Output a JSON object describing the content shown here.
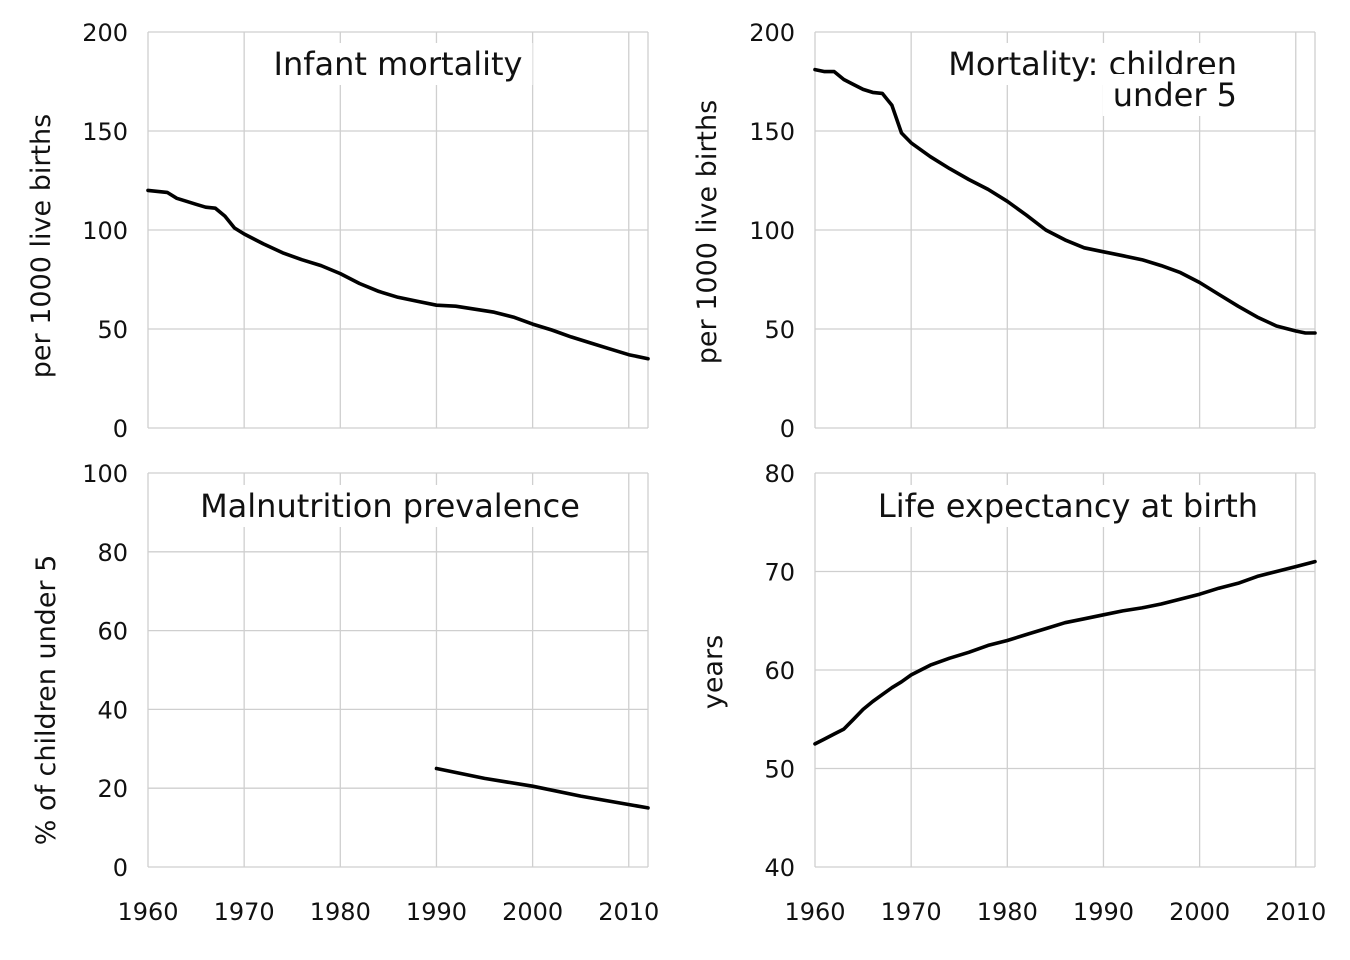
{
  "chart_data": [
    {
      "type": "line",
      "title": [
        "Infant mortality"
      ],
      "title_align": "middle",
      "ylabel": "per 1000 live births",
      "xlim": [
        1960,
        2012
      ],
      "ylim": [
        0,
        200
      ],
      "yticks": [
        0,
        50,
        100,
        150,
        200
      ],
      "xticks": [
        1960,
        1970,
        1980,
        1990,
        2000,
        2010
      ],
      "show_xtick_labels": false,
      "grid": true,
      "series": [
        {
          "x": [
            1960,
            1961,
            1962,
            1963,
            1964,
            1965,
            1966,
            1967,
            1968,
            1969,
            1970,
            1972,
            1974,
            1976,
            1978,
            1980,
            1982,
            1984,
            1986,
            1988,
            1990,
            1992,
            1994,
            1996,
            1998,
            2000,
            2002,
            2004,
            2006,
            2008,
            2010,
            2012
          ],
          "values": [
            120,
            119.5,
            119,
            116,
            114.5,
            113,
            111.5,
            111,
            107,
            101,
            98,
            93,
            88.5,
            85,
            82,
            78,
            73,
            69,
            66,
            64,
            62,
            61.5,
            60,
            58.5,
            56,
            52.5,
            49.5,
            46,
            43,
            40,
            37,
            35
          ]
        }
      ]
    },
    {
      "type": "line",
      "title": [
        "Mortality: children",
        "under 5"
      ],
      "title_align": "end",
      "ylabel": "per 1000 live births",
      "xlim": [
        1960,
        2012
      ],
      "ylim": [
        0,
        200
      ],
      "yticks": [
        0,
        50,
        100,
        150,
        200
      ],
      "xticks": [
        1960,
        1970,
        1980,
        1990,
        2000,
        2010
      ],
      "show_xtick_labels": false,
      "grid": true,
      "series": [
        {
          "x": [
            1960,
            1961,
            1962,
            1963,
            1964,
            1965,
            1966,
            1967,
            1968,
            1969,
            1970,
            1972,
            1974,
            1976,
            1978,
            1980,
            1982,
            1984,
            1986,
            1988,
            1990,
            1992,
            1994,
            1996,
            1998,
            2000,
            2002,
            2004,
            2006,
            2008,
            2010,
            2011,
            2012
          ],
          "values": [
            181,
            180,
            180,
            176,
            173.5,
            171,
            169.5,
            169,
            163,
            149,
            144,
            137,
            131,
            125.5,
            120.5,
            114.5,
            107.5,
            100,
            95,
            91,
            89,
            87,
            85,
            82,
            78.5,
            73.5,
            67.5,
            61.5,
            56,
            51.5,
            49,
            48,
            48
          ]
        }
      ]
    },
    {
      "type": "line",
      "title": [
        "Malnutrition prevalence"
      ],
      "title_align": "middle",
      "ylabel": "% of children under 5",
      "xlim": [
        1960,
        2012
      ],
      "ylim": [
        0,
        100
      ],
      "yticks": [
        0,
        20,
        40,
        60,
        80,
        100
      ],
      "xticks": [
        1960,
        1970,
        1980,
        1990,
        2000,
        2010
      ],
      "show_xtick_labels": true,
      "grid": true,
      "series": [
        {
          "x": [
            1990,
            1995,
            2000,
            2005,
            2012
          ],
          "values": [
            25,
            22.5,
            20.5,
            18,
            15
          ]
        }
      ]
    },
    {
      "type": "line",
      "title": [
        "Life expectancy at birth"
      ],
      "title_align": "middle",
      "ylabel": "years",
      "xlim": [
        1960,
        2012
      ],
      "ylim": [
        40,
        80
      ],
      "yticks": [
        40,
        50,
        60,
        70,
        80
      ],
      "xticks": [
        1960,
        1970,
        1980,
        1990,
        2000,
        2010
      ],
      "show_xtick_labels": true,
      "grid": true,
      "series": [
        {
          "x": [
            1960,
            1961,
            1962,
            1963,
            1964,
            1965,
            1966,
            1967,
            1968,
            1969,
            1970,
            1972,
            1974,
            1976,
            1978,
            1980,
            1982,
            1984,
            1986,
            1988,
            1990,
            1992,
            1994,
            1996,
            1998,
            2000,
            2002,
            2004,
            2006,
            2008,
            2010,
            2012
          ],
          "values": [
            52.5,
            53,
            53.5,
            54,
            55,
            56,
            56.8,
            57.5,
            58.2,
            58.8,
            59.5,
            60.5,
            61.2,
            61.8,
            62.5,
            63,
            63.6,
            64.2,
            64.8,
            65.2,
            65.6,
            66,
            66.3,
            66.7,
            67.2,
            67.7,
            68.3,
            68.8,
            69.5,
            70,
            70.5,
            71
          ]
        }
      ]
    }
  ]
}
